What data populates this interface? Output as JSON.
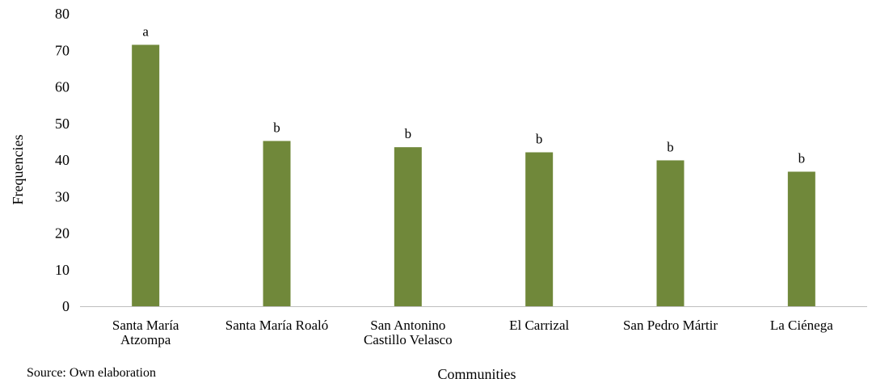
{
  "chart_data": {
    "type": "bar",
    "categories": [
      [
        "Santa María",
        "Atzompa"
      ],
      [
        "Santa María Roaló"
      ],
      [
        "San Antonino",
        "Castillo Velasco"
      ],
      [
        "El Carrizal"
      ],
      [
        "San Pedro Mártir"
      ],
      [
        "La Ciénega"
      ]
    ],
    "values": [
      71.5,
      45.2,
      43.5,
      42.1,
      39.9,
      36.8
    ],
    "data_labels": [
      "a",
      "b",
      "b",
      "b",
      "b",
      "b"
    ],
    "xlabel": "Communities",
    "ylabel": "Frequencies",
    "ylim": [
      0,
      80
    ],
    "yticks": [
      "0",
      "10",
      "20",
      "30",
      "40",
      "50",
      "60",
      "70",
      "80"
    ],
    "grid": false,
    "legend": "none",
    "bar_color": "#70883a",
    "axis_color": "#bfbfbf"
  },
  "source": "Source: Own elaboration"
}
